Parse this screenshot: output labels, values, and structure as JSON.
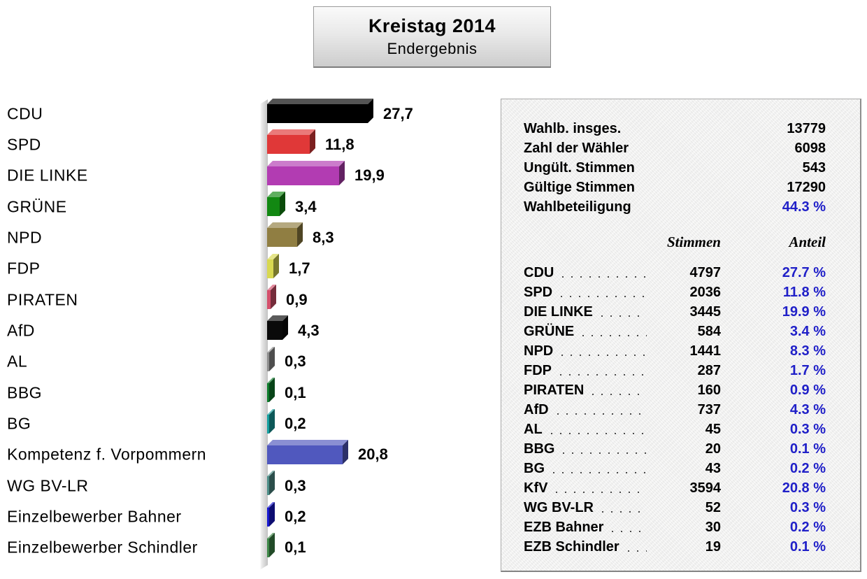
{
  "title": {
    "line1": "Kreistag 2014",
    "line2": "Endergebnis"
  },
  "chart_data": {
    "type": "bar",
    "orientation": "horizontal",
    "title": "Kreistag 2014 — Endergebnis",
    "xlabel": "",
    "ylabel": "",
    "unit": "%",
    "xlim": [
      0,
      30
    ],
    "grid": false,
    "decimal_style": "comma",
    "categories": [
      "CDU",
      "SPD",
      "DIE LINKE",
      "GRÜNE",
      "NPD",
      "FDP",
      "PIRATEN",
      "AfD",
      "AL",
      "BBG",
      "BG",
      "Kompetenz f. Vorpommern",
      "WG BV-LR",
      "Einzelbewerber Bahner",
      "Einzelbewerber Schindler"
    ],
    "values": [
      27.7,
      11.8,
      19.9,
      3.4,
      8.3,
      1.7,
      0.9,
      4.3,
      0.3,
      0.1,
      0.2,
      20.8,
      0.3,
      0.2,
      0.1
    ],
    "value_labels": [
      "27,7",
      "11,8",
      "19,9",
      "3,4",
      "8,3",
      "1,7",
      "0,9",
      "4,3",
      "0,3",
      "0,1",
      "0,2",
      "20,8",
      "0,3",
      "0,2",
      "0,1"
    ],
    "colors": [
      "#000000",
      "#e03838",
      "#b23cb2",
      "#128812",
      "#907e42",
      "#d8d850",
      "#d4506c",
      "#0a0a0a",
      "#8e8e8e",
      "#0e7c2c",
      "#16a0a0",
      "#5058be",
      "#4e8e88",
      "#1818d0",
      "#3e8848"
    ]
  },
  "panel": {
    "accent_color": "#2020c8",
    "summary": [
      {
        "label": "Wahlb. insges.",
        "value": "13779",
        "highlight": false
      },
      {
        "label": "Zahl der Wähler",
        "value": "6098",
        "highlight": false
      },
      {
        "label": "Ungült. Stimmen",
        "value": "543",
        "highlight": false
      },
      {
        "label": "Gültige Stimmen",
        "value": "17290",
        "highlight": false
      },
      {
        "label": "Wahlbeteiligung",
        "value": "44.3 %",
        "highlight": true
      }
    ],
    "columns": {
      "stimmen": "Stimmen",
      "anteil": "Anteil"
    },
    "rows": [
      {
        "party": "CDU",
        "stimmen": "4797",
        "anteil": "27.7 %"
      },
      {
        "party": "SPD",
        "stimmen": "2036",
        "anteil": "11.8 %"
      },
      {
        "party": "DIE LINKE",
        "stimmen": "3445",
        "anteil": "19.9 %"
      },
      {
        "party": "GRÜNE",
        "stimmen": "584",
        "anteil": "3.4 %"
      },
      {
        "party": "NPD",
        "stimmen": "1441",
        "anteil": "8.3 %"
      },
      {
        "party": "FDP",
        "stimmen": "287",
        "anteil": "1.7 %"
      },
      {
        "party": "PIRATEN",
        "stimmen": "160",
        "anteil": "0.9 %"
      },
      {
        "party": "AfD",
        "stimmen": "737",
        "anteil": "4.3 %"
      },
      {
        "party": "AL",
        "stimmen": "45",
        "anteil": "0.3 %"
      },
      {
        "party": "BBG",
        "stimmen": "20",
        "anteil": "0.1 %"
      },
      {
        "party": "BG",
        "stimmen": "43",
        "anteil": "0.2 %"
      },
      {
        "party": "KfV",
        "stimmen": "3594",
        "anteil": "20.8 %"
      },
      {
        "party": "WG BV-LR",
        "stimmen": "52",
        "anteil": "0.3 %"
      },
      {
        "party": "EZB Bahner",
        "stimmen": "30",
        "anteil": "0.2 %"
      },
      {
        "party": "EZB Schindler",
        "stimmen": "19",
        "anteil": "0.1 %"
      }
    ]
  }
}
